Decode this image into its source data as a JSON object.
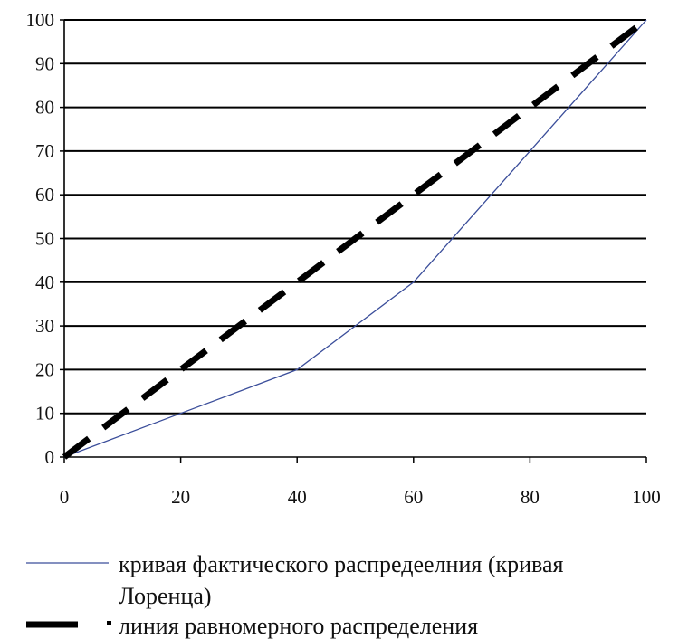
{
  "chart_data": {
    "type": "line",
    "title": "",
    "xlabel": "",
    "ylabel": "",
    "xlim": [
      0,
      100
    ],
    "ylim": [
      0,
      100
    ],
    "x_ticks": [
      0,
      20,
      40,
      60,
      80,
      100
    ],
    "y_ticks": [
      0,
      10,
      20,
      30,
      40,
      50,
      60,
      70,
      80,
      90,
      100
    ],
    "grid": "horizontal",
    "legend_position": "bottom",
    "series": [
      {
        "name": "кривая фактического распредеелния (кривая Лоренца)",
        "legend_lines": [
          "кривая фактического распредеелния (кривая",
          "Лоренца)"
        ],
        "style": "solid-thin",
        "color": "#3a4d9a",
        "x": [
          0,
          20,
          40,
          60,
          80,
          100
        ],
        "y": [
          0,
          10,
          20,
          40,
          70,
          100
        ]
      },
      {
        "name": "линия равномерного распределения",
        "legend_lines": [
          "линия равномерного распределения"
        ],
        "style": "dashed-thick",
        "color": "#000000",
        "x": [
          0,
          100
        ],
        "y": [
          0,
          100
        ]
      }
    ]
  }
}
